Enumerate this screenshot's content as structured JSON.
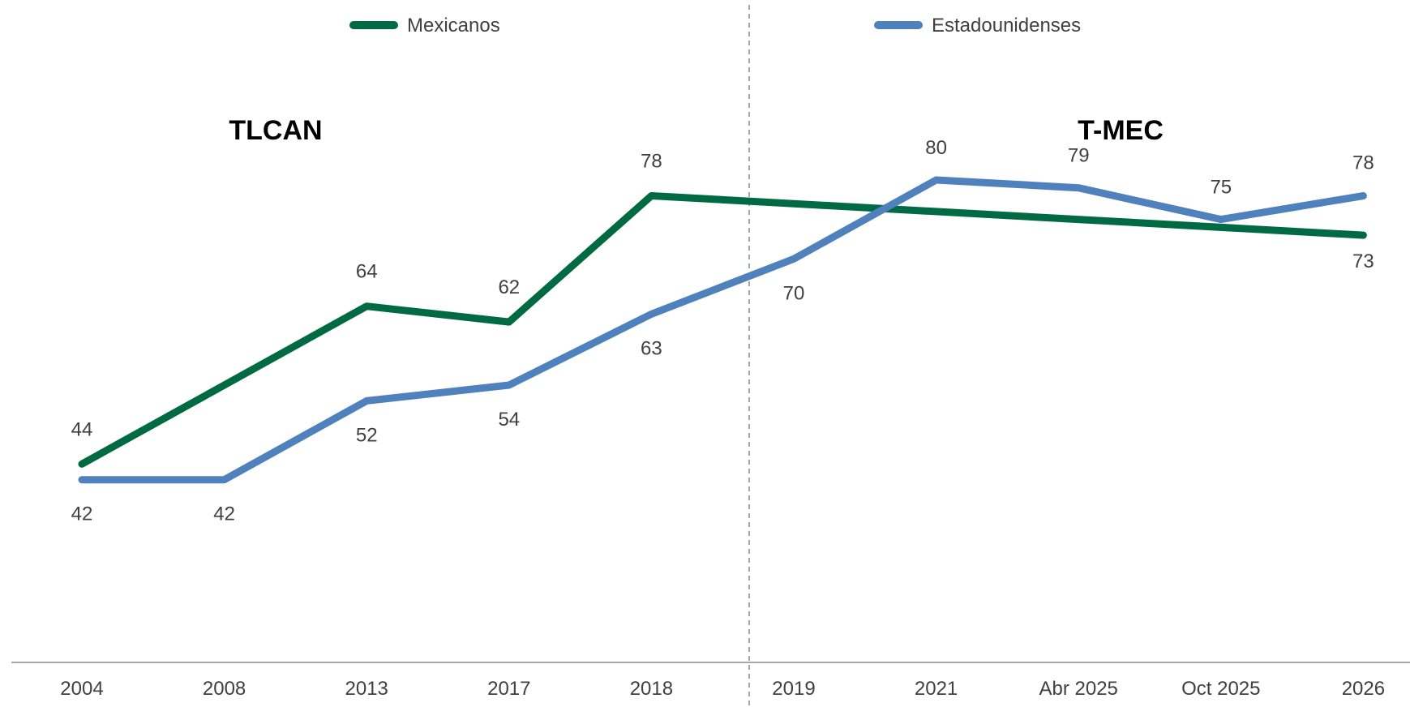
{
  "chart_data": {
    "type": "line",
    "categories": [
      "2004",
      "2008",
      "2013",
      "2017",
      "2018",
      "2019",
      "2021",
      "Abr 2025",
      "Oct 2025",
      "2026"
    ],
    "ylim": [
      0,
      100
    ],
    "grid": false,
    "legend_position": "top",
    "series": [
      {
        "name": "Mexicanos",
        "color": "#006A44",
        "x": [
          "2004",
          "2008",
          "2013",
          "2017",
          "2018",
          "2026"
        ],
        "values": [
          44,
          null,
          64,
          62,
          78,
          73
        ],
        "labels": [
          "44",
          "",
          "64",
          "62",
          "78",
          "73"
        ]
      },
      {
        "name": "Estadounidenses",
        "color": "#4F81BD",
        "x": [
          "2004",
          "2008",
          "2013",
          "2017",
          "2018",
          "2019",
          "2021",
          "Abr 2025",
          "Oct 2025",
          "2026"
        ],
        "values": [
          42,
          42,
          52,
          54,
          63,
          70,
          80,
          79,
          75,
          78
        ],
        "labels": [
          "42",
          "42",
          "52",
          "54",
          "63",
          "70",
          "80",
          "79",
          "75",
          "78"
        ]
      }
    ],
    "annotations": {
      "left_period": "TLCAN",
      "right_period": "T-MEC",
      "divider_between": [
        "2018",
        "2019"
      ]
    }
  }
}
